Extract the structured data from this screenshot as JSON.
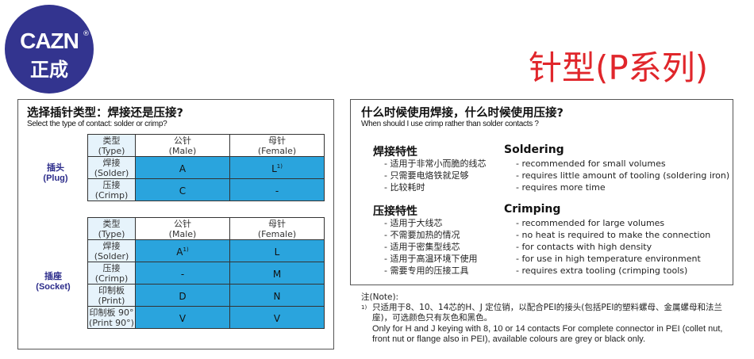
{
  "logo": {
    "en": "CAZN",
    "cn": "正成",
    "reg": "®"
  },
  "title": "针型(P系列)",
  "left": {
    "title_cn": "选择插针类型：焊接还是压接?",
    "title_en": "Select the type of contact: solder or crimp?",
    "header": {
      "type": [
        "类型",
        "(Type)"
      ],
      "male": [
        "公针",
        "(Male)"
      ],
      "female": [
        "母针",
        "(Female)"
      ]
    },
    "plug": {
      "label_cn": "插头",
      "label_en": "(Plug)",
      "rows": [
        {
          "type": [
            "焊接",
            "(Solder)"
          ],
          "male": "A",
          "male_sup": "",
          "female": "L",
          "female_sup": "1)"
        },
        {
          "type": [
            "压接",
            "(Crimp)"
          ],
          "male": "C",
          "male_sup": "",
          "female": "-",
          "female_sup": ""
        }
      ]
    },
    "socket": {
      "label_cn": "插座",
      "label_en": "(Socket)",
      "rows": [
        {
          "type": [
            "焊接",
            "(Solder)"
          ],
          "male": "A",
          "male_sup": "1)",
          "female": "L",
          "female_sup": ""
        },
        {
          "type": [
            "压接",
            "(Crimp)"
          ],
          "male": "-",
          "male_sup": "",
          "female": "M",
          "female_sup": ""
        },
        {
          "type": [
            "印制板",
            "(Print)"
          ],
          "male": "D",
          "male_sup": "",
          "female": "N",
          "female_sup": ""
        },
        {
          "type": [
            "印制板 90°",
            "(Print 90°)"
          ],
          "male": "V",
          "male_sup": "",
          "female": "V",
          "female_sup": ""
        }
      ]
    }
  },
  "right": {
    "title_cn": "什么时候使用焊接，什么时候使用压接?",
    "title_en": "When should I use crimp rather than solder contacts ?",
    "solder": {
      "cn": "焊接特性",
      "en": "Soldering",
      "items_cn": [
        "- 适用于非常小而脆的线芯",
        "- 只需要电烙铁就足够",
        "- 比较耗时"
      ],
      "items_en": [
        "- recommended for small volumes",
        "- requires little amount of tooling (soldering iron)",
        "- requires more time"
      ]
    },
    "crimp": {
      "cn": "压接特性",
      "en": "Crimping",
      "items_cn": [
        "- 适用于大线芯",
        "- 不需要加热的情况",
        "- 适用于密集型线芯",
        "- 适用于高温环境下使用",
        "- 需要专用的压接工具"
      ],
      "items_en": [
        "- recommended for large volumes",
        "- no heat is required to make the connection",
        "- for contacts with high density",
        "- for use in high temperature environment",
        "- requires extra tooling (crimping tools)"
      ]
    }
  },
  "note": {
    "label": "注(Note):",
    "mark": "1)",
    "cn": "只适用于8、10、14芯的H、J 定位销，以配合PEI的接头(包括PEI的塑料螺母、金属螺母和法兰座)，可选颜色只有灰色和黑色。",
    "en": "Only for H and J keying with 8, 10 or 14 contacts For complete connector in PEI (collet nut, front nut or flange also in PEI), available colours are grey or black only."
  },
  "colors": {
    "cell": "#2aa4dd",
    "title": "#e0262b",
    "logo": "#33348f"
  }
}
